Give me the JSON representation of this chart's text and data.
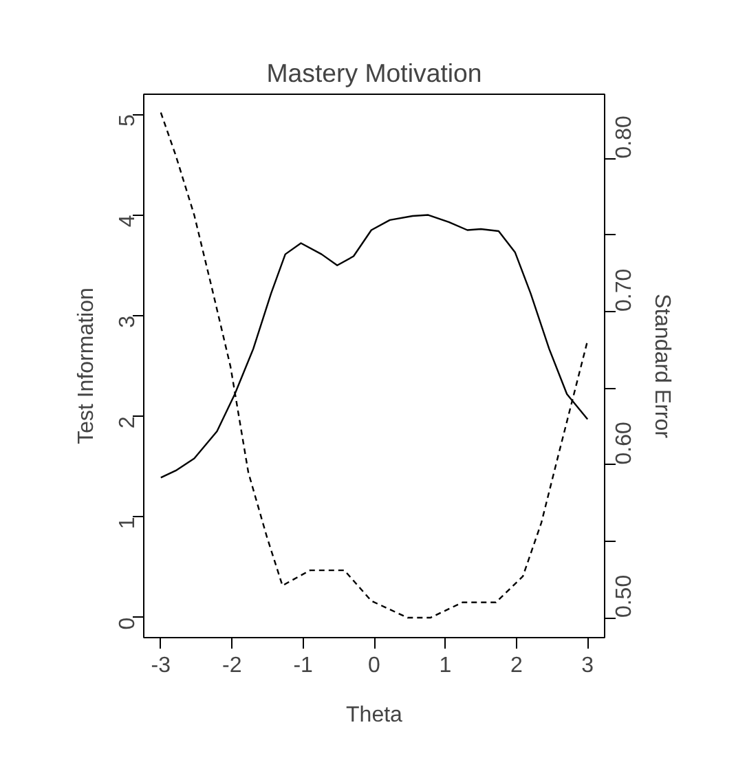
{
  "chart_data": {
    "type": "line",
    "title": "Mastery Motivation",
    "xlabel": "Theta",
    "ylabel": "Test Information",
    "y2label": "Standard Error",
    "xlim": [
      -3.24,
      3.24
    ],
    "xticks": [
      -3,
      -2,
      -1,
      0,
      1,
      2,
      3
    ],
    "ylim": [
      -0.2,
      5.2
    ],
    "yticks": [
      0,
      1,
      2,
      3,
      4,
      5
    ],
    "y2lim": [
      0.487,
      0.842
    ],
    "y2ticks": [
      {
        "value": 0.5,
        "label": "0.50"
      },
      {
        "value": 0.55,
        "label": null
      },
      {
        "value": 0.6,
        "label": "0.60"
      },
      {
        "value": 0.65,
        "label": null
      },
      {
        "value": 0.7,
        "label": "0.70"
      },
      {
        "value": 0.75,
        "label": null
      },
      {
        "value": 0.8,
        "label": "0.80"
      }
    ],
    "grid": false,
    "series": [
      {
        "color": "#000000",
        "line_style": "solid",
        "x": [
          -3,
          -2.79,
          -2.53,
          -2.21,
          -1.96,
          -1.7,
          -1.45,
          -1.25,
          -1.03,
          -0.74,
          -0.52,
          -0.29,
          -0.04,
          0.22,
          0.54,
          0.76,
          1.05,
          1.31,
          1.5,
          1.75,
          1.98,
          2.2,
          2.46,
          2.71,
          3
        ],
        "values": [
          1.39,
          1.46,
          1.58,
          1.85,
          2.22,
          2.67,
          3.22,
          3.61,
          3.72,
          3.61,
          3.5,
          3.59,
          3.85,
          3.95,
          3.99,
          4.0,
          3.93,
          3.85,
          3.86,
          3.84,
          3.63,
          3.22,
          2.67,
          2.22,
          1.97
        ]
      },
      {
        "color": "#000000",
        "line_style": "dashed",
        "axis": "y2",
        "x": [
          -3,
          -2.79,
          -2.53,
          -2.28,
          -2.02,
          -1.77,
          -1.51,
          -1.29,
          -0.9,
          -0.42,
          -0.04,
          0.47,
          0.79,
          1.24,
          1.71,
          2.09,
          2.35,
          2.61,
          3
        ],
        "values": [
          0.83,
          0.802,
          0.763,
          0.715,
          0.664,
          0.595,
          0.553,
          0.521,
          0.531,
          0.531,
          0.511,
          0.5,
          0.5,
          0.51,
          0.51,
          0.527,
          0.562,
          0.61,
          0.681
        ]
      }
    ]
  }
}
